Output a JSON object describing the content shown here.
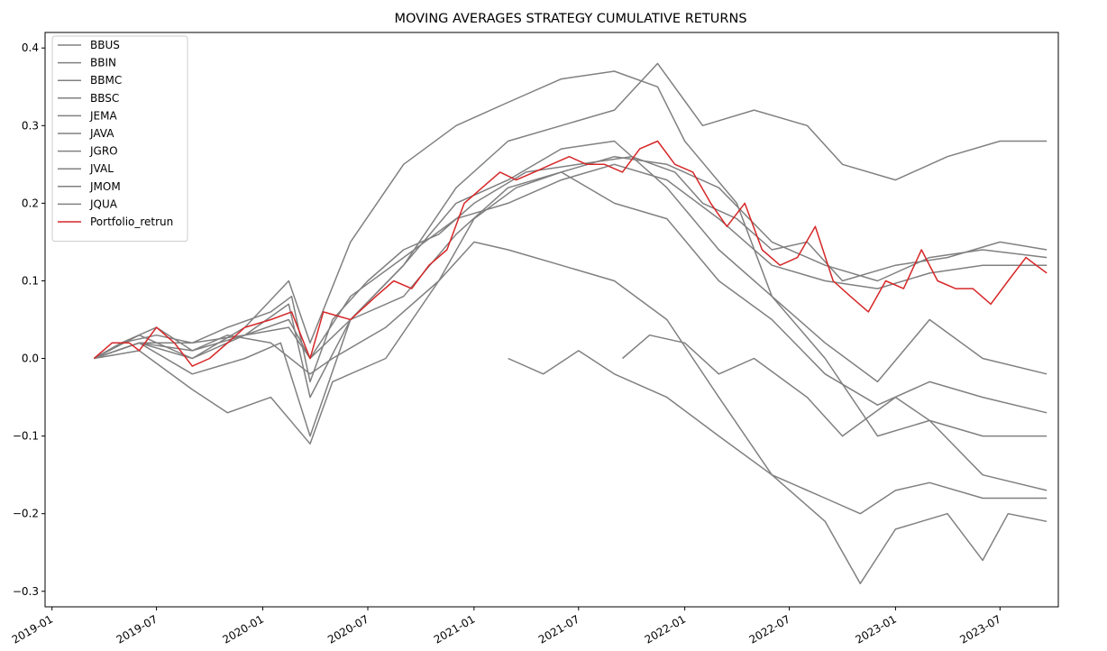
{
  "chart_data": {
    "type": "line",
    "title": "MOVING AVERAGES STRATEGY CUMULATIVE RETURNS",
    "xlabel": "",
    "ylabel": "",
    "xlim": [
      "2018-12-20",
      "2023-10-10"
    ],
    "ylim": [
      -0.32,
      0.42
    ],
    "x_ticks": [
      "2019-01",
      "2019-07",
      "2020-01",
      "2020-07",
      "2021-01",
      "2021-07",
      "2022-01",
      "2022-07",
      "2023-01",
      "2023-07"
    ],
    "y_ticks": [
      0.4,
      0.3,
      0.2,
      0.1,
      0.0,
      -0.1,
      -0.2,
      -0.3
    ],
    "y_tick_labels": [
      "0.4",
      "0.3",
      "0.2",
      "0.1",
      "0.0",
      "−0.1",
      "−0.2",
      "−0.3"
    ],
    "grid": false,
    "legend_position": "upper-left",
    "colors": {
      "gray": "#808080",
      "red": "#d62728"
    },
    "series": [
      {
        "name": "BBUS",
        "color": "#808080",
        "points": [
          [
            "2019-03-15",
            0.0
          ],
          [
            "2019-05-01",
            0.02
          ],
          [
            "2019-07-01",
            0.03
          ],
          [
            "2019-09-01",
            0.02
          ],
          [
            "2019-11-01",
            0.04
          ],
          [
            "2020-01-15",
            0.06
          ],
          [
            "2020-02-20",
            0.08
          ],
          [
            "2020-03-23",
            -0.03
          ],
          [
            "2020-05-01",
            0.05
          ],
          [
            "2020-07-01",
            0.1
          ],
          [
            "2020-09-01",
            0.14
          ],
          [
            "2020-11-01",
            0.16
          ],
          [
            "2021-01-01",
            0.2
          ],
          [
            "2021-04-01",
            0.24
          ],
          [
            "2021-07-01",
            0.25
          ],
          [
            "2021-10-01",
            0.26
          ],
          [
            "2021-12-15",
            0.24
          ],
          [
            "2022-02-01",
            0.2
          ],
          [
            "2022-04-01",
            0.18
          ],
          [
            "2022-06-01",
            0.14
          ],
          [
            "2022-08-01",
            0.15
          ],
          [
            "2022-10-01",
            0.1
          ],
          [
            "2023-01-01",
            0.12
          ],
          [
            "2023-04-01",
            0.13
          ],
          [
            "2023-07-01",
            0.15
          ],
          [
            "2023-09-20",
            0.14
          ]
        ]
      },
      {
        "name": "BBIN",
        "color": "#808080",
        "points": [
          [
            "2019-03-15",
            0.0
          ],
          [
            "2019-05-01",
            0.02
          ],
          [
            "2019-07-01",
            0.04
          ],
          [
            "2019-09-01",
            0.01
          ],
          [
            "2019-11-01",
            0.03
          ],
          [
            "2020-01-15",
            0.02
          ],
          [
            "2020-03-23",
            -0.02
          ],
          [
            "2020-05-01",
            0.0
          ],
          [
            "2020-08-01",
            0.04
          ],
          [
            "2020-11-01",
            0.1
          ],
          [
            "2021-01-01",
            0.15
          ],
          [
            "2021-03-01",
            0.14
          ],
          [
            "2021-06-01",
            0.12
          ],
          [
            "2021-09-01",
            0.1
          ],
          [
            "2021-12-01",
            0.05
          ],
          [
            "2022-03-01",
            -0.05
          ],
          [
            "2022-06-01",
            -0.15
          ],
          [
            "2022-09-01",
            -0.18
          ],
          [
            "2022-11-01",
            -0.2
          ],
          [
            "2023-01-01",
            -0.17
          ],
          [
            "2023-03-01",
            -0.16
          ],
          [
            "2023-06-01",
            -0.18
          ],
          [
            "2023-09-20",
            -0.18
          ]
        ]
      },
      {
        "name": "BBMC",
        "color": "#808080",
        "points": [
          [
            "2019-03-15",
            0.0
          ],
          [
            "2019-06-01",
            0.01
          ],
          [
            "2019-09-01",
            -0.04
          ],
          [
            "2019-11-01",
            -0.07
          ],
          [
            "2020-01-15",
            -0.05
          ],
          [
            "2020-03-23",
            -0.11
          ],
          [
            "2020-05-01",
            -0.03
          ],
          [
            "2020-08-01",
            0.0
          ],
          [
            "2020-11-01",
            0.1
          ],
          [
            "2021-01-01",
            0.18
          ],
          [
            "2021-03-15",
            0.22
          ],
          [
            "2021-06-01",
            0.24
          ],
          [
            "2021-09-01",
            0.2
          ],
          [
            "2021-12-01",
            0.18
          ],
          [
            "2022-03-01",
            0.1
          ],
          [
            "2022-06-01",
            0.05
          ],
          [
            "2022-09-01",
            -0.02
          ],
          [
            "2022-12-01",
            -0.06
          ],
          [
            "2023-03-01",
            -0.03
          ],
          [
            "2023-06-01",
            -0.05
          ],
          [
            "2023-09-20",
            -0.07
          ]
        ]
      },
      {
        "name": "BBSC",
        "color": "#808080",
        "points": [
          [
            "2019-03-15",
            0.0
          ],
          [
            "2019-06-01",
            0.02
          ],
          [
            "2019-09-01",
            -0.02
          ],
          [
            "2019-12-01",
            0.0
          ],
          [
            "2020-02-01",
            0.02
          ],
          [
            "2020-03-23",
            -0.1
          ],
          [
            "2020-06-01",
            0.05
          ],
          [
            "2020-09-01",
            0.12
          ],
          [
            "2020-12-01",
            0.22
          ],
          [
            "2021-03-01",
            0.28
          ],
          [
            "2021-06-01",
            0.3
          ],
          [
            "2021-09-01",
            0.32
          ],
          [
            "2021-11-15",
            0.38
          ],
          [
            "2022-02-01",
            0.3
          ],
          [
            "2022-05-01",
            0.32
          ],
          [
            "2022-08-01",
            0.3
          ],
          [
            "2022-10-01",
            0.25
          ],
          [
            "2023-01-01",
            0.23
          ],
          [
            "2023-04-01",
            0.26
          ],
          [
            "2023-07-01",
            0.28
          ],
          [
            "2023-09-20",
            0.28
          ]
        ]
      },
      {
        "name": "JEMA",
        "color": "#808080",
        "points": [
          [
            "2021-03-01",
            0.0
          ],
          [
            "2021-05-01",
            -0.02
          ],
          [
            "2021-07-01",
            0.01
          ],
          [
            "2021-09-01",
            -0.02
          ],
          [
            "2021-12-01",
            -0.05
          ],
          [
            "2022-03-01",
            -0.1
          ],
          [
            "2022-06-01",
            -0.15
          ],
          [
            "2022-09-01",
            -0.21
          ],
          [
            "2022-11-01",
            -0.29
          ],
          [
            "2023-01-01",
            -0.22
          ],
          [
            "2023-04-01",
            -0.2
          ],
          [
            "2023-06-01",
            -0.26
          ],
          [
            "2023-07-15",
            -0.2
          ],
          [
            "2023-09-20",
            -0.21
          ]
        ]
      },
      {
        "name": "JAVA",
        "color": "#808080",
        "points": [
          [
            "2021-09-15",
            0.0
          ],
          [
            "2021-11-01",
            0.03
          ],
          [
            "2022-01-01",
            0.02
          ],
          [
            "2022-03-01",
            -0.02
          ],
          [
            "2022-05-01",
            0.0
          ],
          [
            "2022-08-01",
            -0.05
          ],
          [
            "2022-10-01",
            -0.1
          ],
          [
            "2023-01-01",
            -0.05
          ],
          [
            "2023-03-01",
            -0.08
          ],
          [
            "2023-06-01",
            -0.1
          ],
          [
            "2023-09-20",
            -0.1
          ]
        ]
      },
      {
        "name": "JGRO",
        "color": "#808080",
        "points": [
          [
            "2019-03-15",
            0.0
          ],
          [
            "2019-06-01",
            0.03
          ],
          [
            "2019-09-01",
            0.0
          ],
          [
            "2019-12-01",
            0.04
          ],
          [
            "2020-02-15",
            0.1
          ],
          [
            "2020-03-23",
            0.02
          ],
          [
            "2020-06-01",
            0.15
          ],
          [
            "2020-09-01",
            0.25
          ],
          [
            "2020-12-01",
            0.3
          ],
          [
            "2021-03-01",
            0.33
          ],
          [
            "2021-06-01",
            0.36
          ],
          [
            "2021-09-01",
            0.37
          ],
          [
            "2021-11-15",
            0.35
          ],
          [
            "2022-01-01",
            0.28
          ],
          [
            "2022-04-01",
            0.2
          ],
          [
            "2022-06-01",
            0.08
          ],
          [
            "2022-09-01",
            0.02
          ],
          [
            "2022-12-01",
            -0.03
          ],
          [
            "2023-03-01",
            0.05
          ],
          [
            "2023-06-01",
            0.0
          ],
          [
            "2023-09-20",
            -0.02
          ]
        ]
      },
      {
        "name": "JVAL",
        "color": "#808080",
        "points": [
          [
            "2019-03-15",
            0.0
          ],
          [
            "2019-06-01",
            0.02
          ],
          [
            "2019-09-01",
            0.01
          ],
          [
            "2019-12-01",
            0.03
          ],
          [
            "2020-02-15",
            0.05
          ],
          [
            "2020-03-23",
            0.0
          ],
          [
            "2020-06-01",
            0.05
          ],
          [
            "2020-09-01",
            0.08
          ],
          [
            "2020-12-01",
            0.16
          ],
          [
            "2021-03-01",
            0.22
          ],
          [
            "2021-06-01",
            0.24
          ],
          [
            "2021-09-01",
            0.26
          ],
          [
            "2021-12-01",
            0.25
          ],
          [
            "2022-03-01",
            0.22
          ],
          [
            "2022-06-01",
            0.15
          ],
          [
            "2022-09-01",
            0.12
          ],
          [
            "2022-12-01",
            0.1
          ],
          [
            "2023-03-01",
            0.13
          ],
          [
            "2023-06-01",
            0.14
          ],
          [
            "2023-09-20",
            0.13
          ]
        ]
      },
      {
        "name": "JMOM",
        "color": "#808080",
        "points": [
          [
            "2019-03-15",
            0.0
          ],
          [
            "2019-06-01",
            0.02
          ],
          [
            "2019-09-01",
            0.0
          ],
          [
            "2019-12-01",
            0.03
          ],
          [
            "2020-02-15",
            0.07
          ],
          [
            "2020-03-23",
            -0.05
          ],
          [
            "2020-06-01",
            0.05
          ],
          [
            "2020-09-01",
            0.12
          ],
          [
            "2020-12-01",
            0.2
          ],
          [
            "2021-03-01",
            0.23
          ],
          [
            "2021-06-01",
            0.27
          ],
          [
            "2021-09-01",
            0.28
          ],
          [
            "2021-12-01",
            0.22
          ],
          [
            "2022-03-01",
            0.14
          ],
          [
            "2022-06-01",
            0.08
          ],
          [
            "2022-09-01",
            0.0
          ],
          [
            "2022-12-01",
            -0.1
          ],
          [
            "2023-03-01",
            -0.08
          ],
          [
            "2023-06-01",
            -0.15
          ],
          [
            "2023-09-20",
            -0.17
          ]
        ]
      },
      {
        "name": "JQUA",
        "color": "#808080",
        "points": [
          [
            "2019-03-15",
            0.0
          ],
          [
            "2019-06-01",
            0.02
          ],
          [
            "2019-09-01",
            0.02
          ],
          [
            "2019-12-01",
            0.03
          ],
          [
            "2020-02-15",
            0.04
          ],
          [
            "2020-03-23",
            0.0
          ],
          [
            "2020-06-01",
            0.08
          ],
          [
            "2020-09-01",
            0.13
          ],
          [
            "2020-12-01",
            0.18
          ],
          [
            "2021-03-01",
            0.2
          ],
          [
            "2021-06-01",
            0.23
          ],
          [
            "2021-09-01",
            0.25
          ],
          [
            "2021-12-01",
            0.23
          ],
          [
            "2022-03-01",
            0.18
          ],
          [
            "2022-06-01",
            0.12
          ],
          [
            "2022-09-01",
            0.1
          ],
          [
            "2022-12-01",
            0.09
          ],
          [
            "2023-03-01",
            0.11
          ],
          [
            "2023-06-01",
            0.12
          ],
          [
            "2023-09-20",
            0.12
          ]
        ]
      },
      {
        "name": "Portfolio_retrun",
        "color": "#d62728",
        "points": [
          [
            "2019-03-15",
            0.0
          ],
          [
            "2019-04-15",
            0.02
          ],
          [
            "2019-05-15",
            0.02
          ],
          [
            "2019-06-01",
            0.01
          ],
          [
            "2019-07-01",
            0.04
          ],
          [
            "2019-08-01",
            0.02
          ],
          [
            "2019-09-01",
            -0.01
          ],
          [
            "2019-10-01",
            0.0
          ],
          [
            "2019-11-01",
            0.02
          ],
          [
            "2019-12-01",
            0.04
          ],
          [
            "2020-01-15",
            0.05
          ],
          [
            "2020-02-20",
            0.06
          ],
          [
            "2020-03-23",
            0.0
          ],
          [
            "2020-04-15",
            0.06
          ],
          [
            "2020-06-01",
            0.05
          ],
          [
            "2020-07-15",
            0.08
          ],
          [
            "2020-08-15",
            0.1
          ],
          [
            "2020-09-15",
            0.09
          ],
          [
            "2020-10-15",
            0.12
          ],
          [
            "2020-11-15",
            0.14
          ],
          [
            "2020-12-15",
            0.2
          ],
          [
            "2021-01-15",
            0.22
          ],
          [
            "2021-02-15",
            0.24
          ],
          [
            "2021-03-15",
            0.23
          ],
          [
            "2021-04-15",
            0.24
          ],
          [
            "2021-05-15",
            0.25
          ],
          [
            "2021-06-15",
            0.26
          ],
          [
            "2021-07-15",
            0.25
          ],
          [
            "2021-08-15",
            0.25
          ],
          [
            "2021-09-15",
            0.24
          ],
          [
            "2021-10-15",
            0.27
          ],
          [
            "2021-11-15",
            0.28
          ],
          [
            "2021-12-15",
            0.25
          ],
          [
            "2022-01-15",
            0.24
          ],
          [
            "2022-02-15",
            0.2
          ],
          [
            "2022-03-15",
            0.17
          ],
          [
            "2022-04-15",
            0.2
          ],
          [
            "2022-05-15",
            0.14
          ],
          [
            "2022-06-15",
            0.12
          ],
          [
            "2022-07-15",
            0.13
          ],
          [
            "2022-08-15",
            0.17
          ],
          [
            "2022-09-15",
            0.1
          ],
          [
            "2022-10-15",
            0.08
          ],
          [
            "2022-11-15",
            0.06
          ],
          [
            "2022-12-15",
            0.1
          ],
          [
            "2023-01-15",
            0.09
          ],
          [
            "2023-02-15",
            0.14
          ],
          [
            "2023-03-15",
            0.1
          ],
          [
            "2023-04-15",
            0.09
          ],
          [
            "2023-05-15",
            0.09
          ],
          [
            "2023-06-15",
            0.07
          ],
          [
            "2023-07-15",
            0.1
          ],
          [
            "2023-08-15",
            0.13
          ],
          [
            "2023-09-20",
            0.11
          ]
        ]
      }
    ]
  }
}
